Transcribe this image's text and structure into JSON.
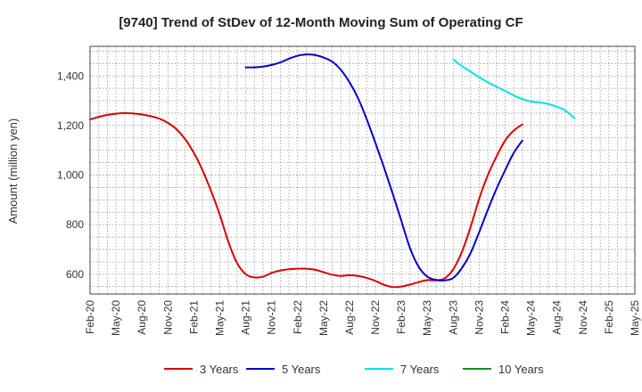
{
  "chart_data": {
    "type": "line",
    "title": "[9740]  Trend of StDev of 12-Month Moving Sum of Operating CF",
    "xlabel": "",
    "ylabel": "Amount (million yen)",
    "ylim": [
      520,
      1520
    ],
    "yticks": [
      600,
      800,
      1000,
      1200,
      1400
    ],
    "ytick_labels": [
      "600",
      "800",
      "1,000",
      "1,200",
      "1,400"
    ],
    "x_ticks": [
      "Feb-20",
      "May-20",
      "Aug-20",
      "Nov-20",
      "Feb-21",
      "May-21",
      "Aug-21",
      "Nov-21",
      "Feb-22",
      "May-22",
      "Aug-22",
      "Nov-22",
      "Feb-23",
      "May-23",
      "Aug-23",
      "Nov-23",
      "Feb-24",
      "May-24",
      "Aug-24",
      "Nov-24",
      "Feb-25",
      "May-25"
    ],
    "grid": true,
    "legend_position": "bottom",
    "series": [
      {
        "name": "3 Years",
        "color": "#dd0000",
        "start_index": 0,
        "values": [
          1225,
          1235,
          1243,
          1248,
          1250,
          1249,
          1245,
          1238,
          1228,
          1211,
          1185,
          1145,
          1090,
          1020,
          935,
          840,
          730,
          645,
          600,
          587,
          590,
          605,
          615,
          620,
          622,
          622,
          618,
          608,
          598,
          593,
          596,
          593,
          585,
          573,
          557,
          548,
          550,
          558,
          568,
          576,
          575,
          583,
          620,
          690,
          790,
          905,
          1000,
          1075,
          1140,
          1180,
          1205
        ]
      },
      {
        "name": "5 Years",
        "color": "#0000cc",
        "start_index": 18,
        "values": [
          1435,
          1435,
          1438,
          1445,
          1455,
          1470,
          1482,
          1487,
          1485,
          1475,
          1458,
          1425,
          1375,
          1310,
          1225,
          1130,
          1030,
          925,
          815,
          705,
          630,
          590,
          577,
          575,
          585,
          625,
          685,
          770,
          860,
          945,
          1020,
          1090,
          1140
        ]
      },
      {
        "name": "7 Years",
        "color": "#00e5e5",
        "start_index": 42,
        "values": [
          1467,
          1440,
          1418,
          1395,
          1375,
          1357,
          1340,
          1322,
          1307,
          1297,
          1293,
          1287,
          1276,
          1260,
          1230
        ]
      },
      {
        "name": "10 Years",
        "color": "#228b22",
        "start_index": 0,
        "values": []
      }
    ]
  }
}
